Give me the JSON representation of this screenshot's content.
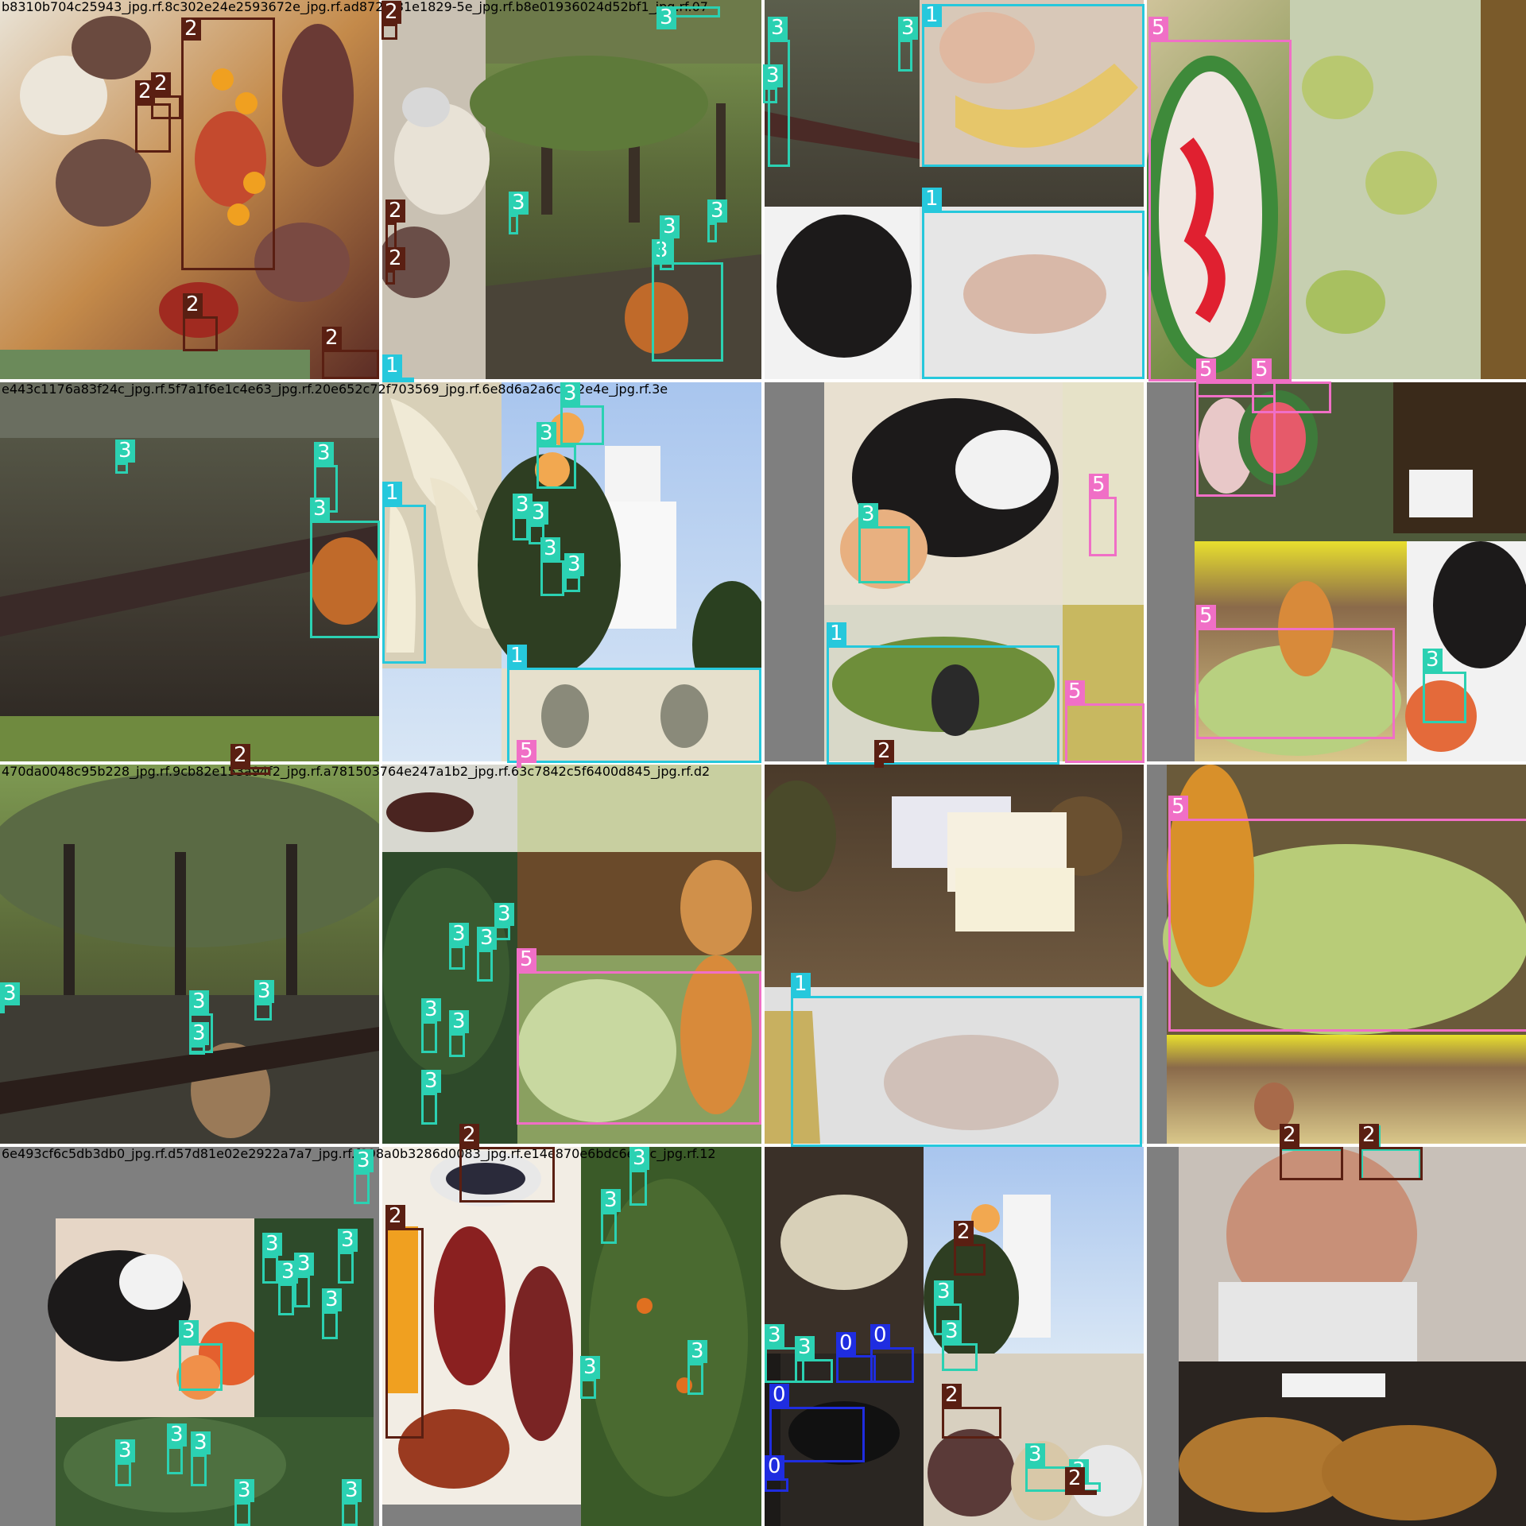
{
  "colors": {
    "0": "#1f2de0",
    "1": "#26c8dc",
    "2": "#5a1f12",
    "3": "#2bd1b2",
    "5": "#f06fc6"
  },
  "tiles": [
    {
      "title": "b8310b704c25943_jpg.rf.8c302e24e2593672e_jpg.rf.ad872af31e1829-5e_jpg.rf.b8e01936024d52bf1_jpg.rf.07",
      "scene": "food: eggs, potatoes, tomatoes, sausages"
    },
    {
      "title": "",
      "scene": "cheese on plate and park with tree-lined path"
    },
    {
      "title": "",
      "scene": "wet plaza, hand holding banana, cat"
    },
    {
      "title": "",
      "scene": "carved watermelon and fruit display"
    },
    {
      "title": "e443c1176a83f24c_jpg.rf.5f7a1f6e1c4e63_jpg.rf.20e652c72f703569_jpg.rf.6e8d6a2a6c902e4e_jpg.rf.3e",
      "scene": "wet stone plaza with orange"
    },
    {
      "title": "",
      "scene": "bananas, orange tree and white tower"
    },
    {
      "title": "",
      "scene": "cat on hat, banana bunches"
    },
    {
      "title": "",
      "scene": "watermelon stalls and waffles"
    },
    {
      "title": "470da0048c95b228_jpg.rf.9cb82e153a94f2_jpg.rf.a781503764e247a1b2_jpg.rf.63c7842c5f6400d845_jpg.rf.d2",
      "scene": "park with trees and fallen fruit"
    },
    {
      "title": "",
      "scene": "orange tree and watermelon vendor"
    },
    {
      "title": "",
      "scene": "pill boxes on table, hand with banana"
    },
    {
      "title": "",
      "scene": "vendor with melons under tent"
    },
    {
      "title": "6e493cf6c5db3db0_jpg.rf.d57d81e02e2922a7a7_jpg.rf.f898a0b3286d0083_jpg.rf.e14e870e6bdc6e7cc_jpg.rf.12",
      "scene": "cat and orange trees"
    },
    {
      "title": "",
      "scene": "sausages, olives and eggs"
    },
    {
      "title": "",
      "scene": "cheese wheels and tower"
    },
    {
      "title": "",
      "scene": "smiling man with oranges, Liege waffles"
    }
  ],
  "labels": [
    {
      "t": 0,
      "c": "2"
    },
    {
      "t": 0,
      "c": "2"
    },
    {
      "t": 0,
      "c": "2"
    },
    {
      "t": 0,
      "c": "2"
    },
    {
      "t": 0,
      "c": "2"
    },
    {
      "t": 0,
      "c": "2"
    },
    {
      "t": 1,
      "c": "3"
    },
    {
      "t": 1,
      "c": "2"
    },
    {
      "t": 1,
      "c": "2"
    },
    {
      "t": 1,
      "c": "3"
    },
    {
      "t": 1,
      "c": "3"
    },
    {
      "t": 1,
      "c": "3"
    },
    {
      "t": 1,
      "c": "3"
    },
    {
      "t": 1,
      "c": "1"
    },
    {
      "t": 2,
      "c": "3"
    },
    {
      "t": 2,
      "c": "3"
    },
    {
      "t": 2,
      "c": "1"
    },
    {
      "t": 2,
      "c": "1"
    },
    {
      "t": 2,
      "c": "3"
    },
    {
      "t": 3,
      "c": "5"
    },
    {
      "t": 3,
      "c": "5"
    },
    {
      "t": 3,
      "c": "5"
    },
    {
      "t": 4,
      "c": "3"
    },
    {
      "t": 4,
      "c": "3"
    },
    {
      "t": 4,
      "c": "3"
    },
    {
      "t": 4,
      "c": "2"
    },
    {
      "t": 5,
      "c": "3"
    },
    {
      "t": 5,
      "c": "3"
    },
    {
      "t": 5,
      "c": "3"
    },
    {
      "t": 5,
      "c": "3"
    },
    {
      "t": 5,
      "c": "1"
    },
    {
      "t": 5,
      "c": "3"
    },
    {
      "t": 5,
      "c": "3"
    },
    {
      "t": 5,
      "c": "1"
    },
    {
      "t": 5,
      "c": "5"
    },
    {
      "t": 6,
      "c": "3"
    },
    {
      "t": 6,
      "c": "1"
    },
    {
      "t": 6,
      "c": "5"
    },
    {
      "t": 6,
      "c": "5"
    },
    {
      "t": 6,
      "c": "2"
    },
    {
      "t": 7,
      "c": "5"
    },
    {
      "t": 7,
      "c": "5"
    },
    {
      "t": 7,
      "c": "3"
    },
    {
      "t": 8,
      "c": "3"
    },
    {
      "t": 8,
      "c": "3"
    },
    {
      "t": 8,
      "c": "3"
    },
    {
      "t": 8,
      "c": "3"
    },
    {
      "t": 9,
      "c": "3"
    },
    {
      "t": 9,
      "c": "3"
    },
    {
      "t": 9,
      "c": "3"
    },
    {
      "t": 9,
      "c": "3"
    },
    {
      "t": 9,
      "c": "3"
    },
    {
      "t": 9,
      "c": "3"
    },
    {
      "t": 9,
      "c": "5"
    },
    {
      "t": 10,
      "c": "1"
    },
    {
      "t": 11,
      "c": "5"
    },
    {
      "t": 11,
      "c": "3"
    },
    {
      "t": 11,
      "c": "3"
    },
    {
      "t": 12,
      "c": "3"
    },
    {
      "t": 12,
      "c": "3"
    },
    {
      "t": 12,
      "c": "3"
    },
    {
      "t": 12,
      "c": "3"
    },
    {
      "t": 12,
      "c": "3"
    },
    {
      "t": 12,
      "c": "3"
    },
    {
      "t": 12,
      "c": "3"
    },
    {
      "t": 12,
      "c": "3"
    },
    {
      "t": 12,
      "c": "3"
    },
    {
      "t": 12,
      "c": "3"
    },
    {
      "t": 12,
      "c": "3"
    },
    {
      "t": 12,
      "c": "3"
    },
    {
      "t": 13,
      "c": "2"
    },
    {
      "t": 13,
      "c": "2"
    },
    {
      "t": 13,
      "c": "3"
    },
    {
      "t": 13,
      "c": "3"
    },
    {
      "t": 13,
      "c": "3"
    },
    {
      "t": 13,
      "c": "3"
    },
    {
      "t": 13,
      "c": "3"
    },
    {
      "t": 13,
      "c": "3"
    },
    {
      "t": 14,
      "c": "0"
    },
    {
      "t": 14,
      "c": "0"
    },
    {
      "t": 14,
      "c": "0"
    },
    {
      "t": 14,
      "c": "0"
    },
    {
      "t": 14,
      "c": "2"
    },
    {
      "t": 14,
      "c": "2"
    },
    {
      "t": 14,
      "c": "3"
    },
    {
      "t": 14,
      "c": "3"
    },
    {
      "t": 14,
      "c": "3"
    },
    {
      "t": 14,
      "c": "3"
    },
    {
      "t": 14,
      "c": "2"
    },
    {
      "t": 14,
      "c": "2"
    },
    {
      "t": 14,
      "c": "2"
    },
    {
      "t": 15,
      "c": "3"
    },
    {
      "t": 15,
      "c": "3"
    }
  ]
}
